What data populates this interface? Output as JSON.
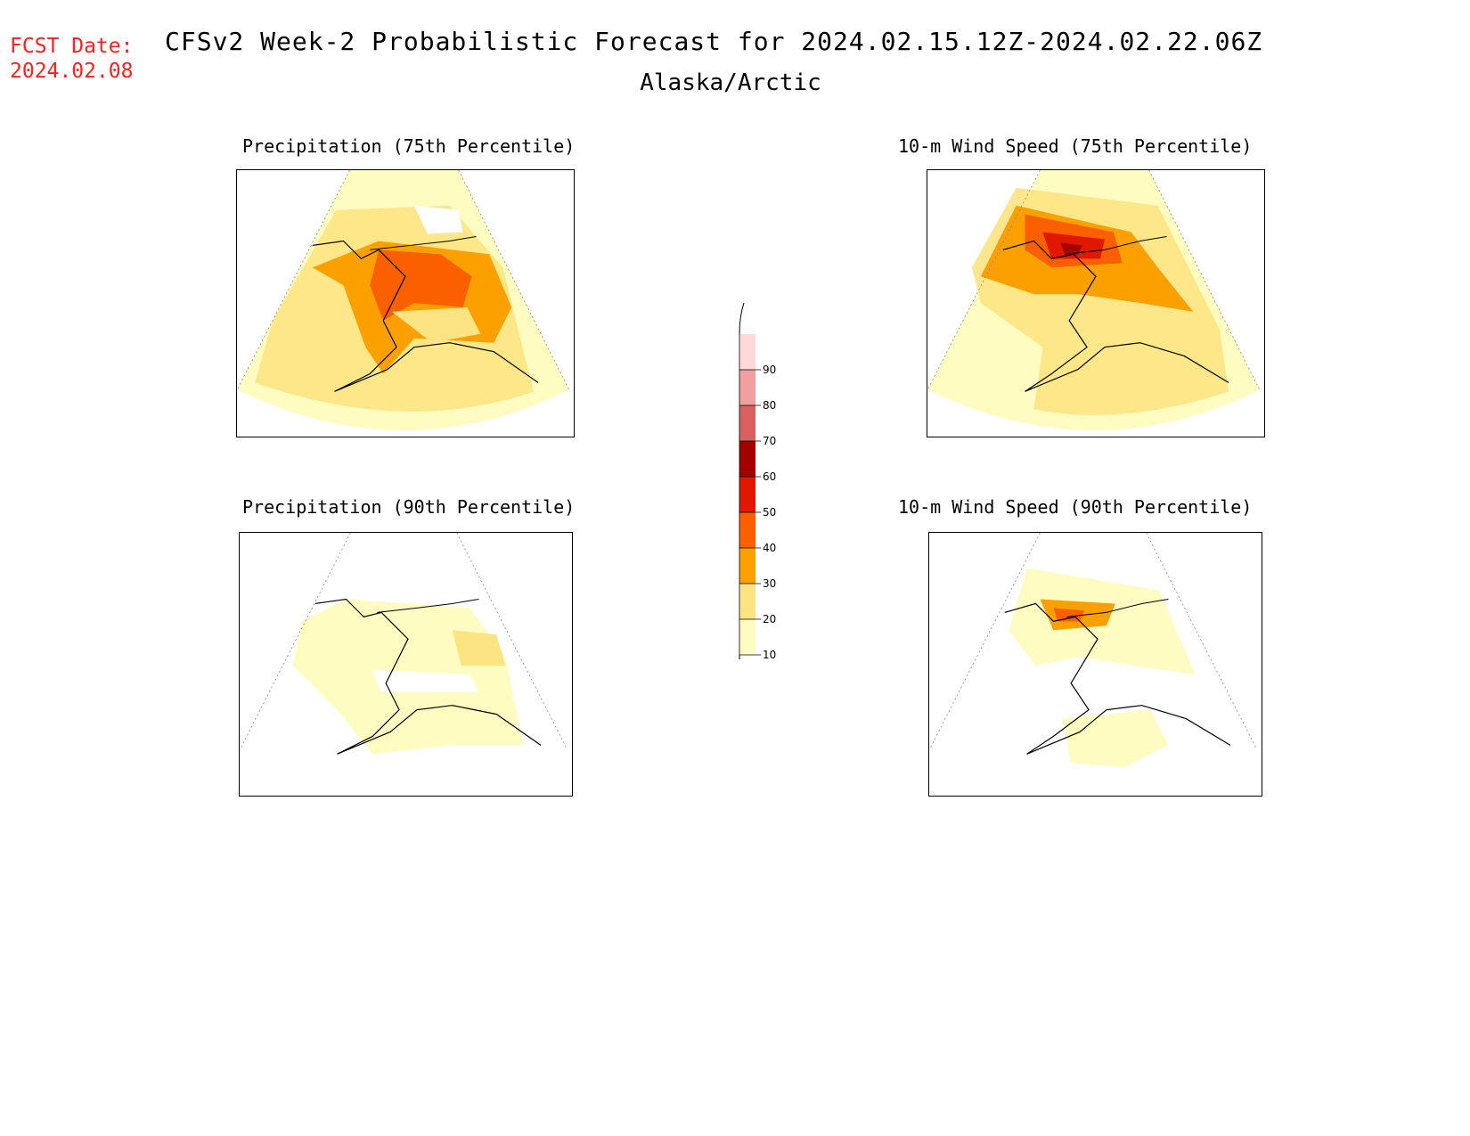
{
  "header": {
    "fcst_label": "FCST Date:",
    "fcst_date": "2024.02.08",
    "title": "CFSv2 Week-2 Probabilistic Forecast for 2024.02.15.12Z-2024.02.22.06Z",
    "region": "Alaska/Arctic"
  },
  "panels": [
    {
      "id": "precip75",
      "title": "Precipitation (75th Percentile)"
    },
    {
      "id": "wind75",
      "title": "10-m Wind Speed (75th Percentile)"
    },
    {
      "id": "precip90",
      "title": "Precipitation (90th Percentile)"
    },
    {
      "id": "wind90",
      "title": "10-m Wind Speed (90th Percentile)"
    }
  ],
  "legend": {
    "ticks": [
      "10",
      "20",
      "30",
      "40",
      "50",
      "60",
      "70",
      "80",
      "90"
    ],
    "colors": [
      "#fffcc2",
      "#fde482",
      "#fca000",
      "#fa6000",
      "#e01800",
      "#a50000",
      "#d96060",
      "#f0a0a0",
      "#ffd8d8"
    ]
  }
}
